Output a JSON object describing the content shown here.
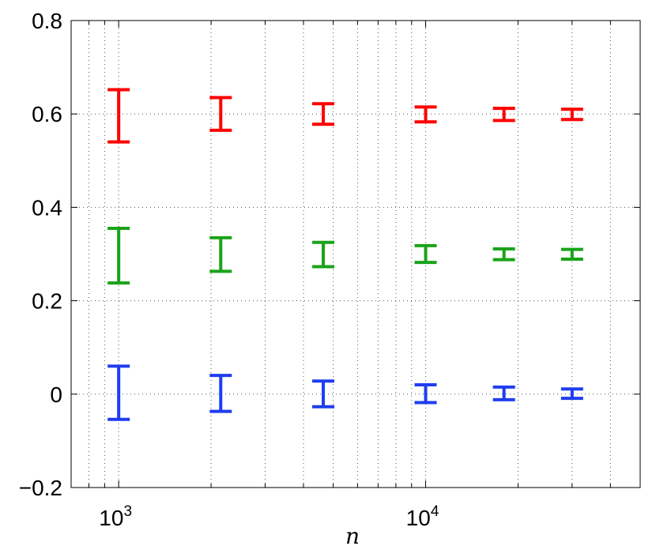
{
  "chart_data": {
    "type": "errorbar",
    "xlabel": "n",
    "ylabel": "",
    "title": "",
    "xscale": "log",
    "xlim": [
      700,
      50000
    ],
    "ylim": [
      -0.2,
      0.8
    ],
    "grid": true,
    "xtick_labels": [
      {
        "value": 1000,
        "base": "10",
        "exp": "3"
      },
      {
        "value": 10000,
        "base": "10",
        "exp": "4"
      }
    ],
    "yticks": [
      -0.2,
      0,
      0.2,
      0.4,
      0.6,
      0.8
    ],
    "ytick_labels": [
      "−0.2",
      "0",
      "0.2",
      "0.4",
      "0.6",
      "0.8"
    ],
    "x": [
      1000,
      2150,
      4640,
      10000,
      18000,
      30000
    ],
    "series": [
      {
        "color": "#ff0000",
        "lower": [
          0.54,
          0.565,
          0.578,
          0.583,
          0.586,
          0.588
        ],
        "upper": [
          0.652,
          0.635,
          0.622,
          0.615,
          0.612,
          0.61
        ]
      },
      {
        "color": "#1aa31a",
        "lower": [
          0.238,
          0.263,
          0.273,
          0.282,
          0.288,
          0.289
        ],
        "upper": [
          0.355,
          0.335,
          0.325,
          0.318,
          0.311,
          0.31
        ]
      },
      {
        "color": "#1f3df0",
        "lower": [
          -0.054,
          -0.037,
          -0.027,
          -0.018,
          -0.012,
          -0.009
        ],
        "upper": [
          0.06,
          0.04,
          0.028,
          0.02,
          0.015,
          0.011
        ]
      }
    ]
  }
}
